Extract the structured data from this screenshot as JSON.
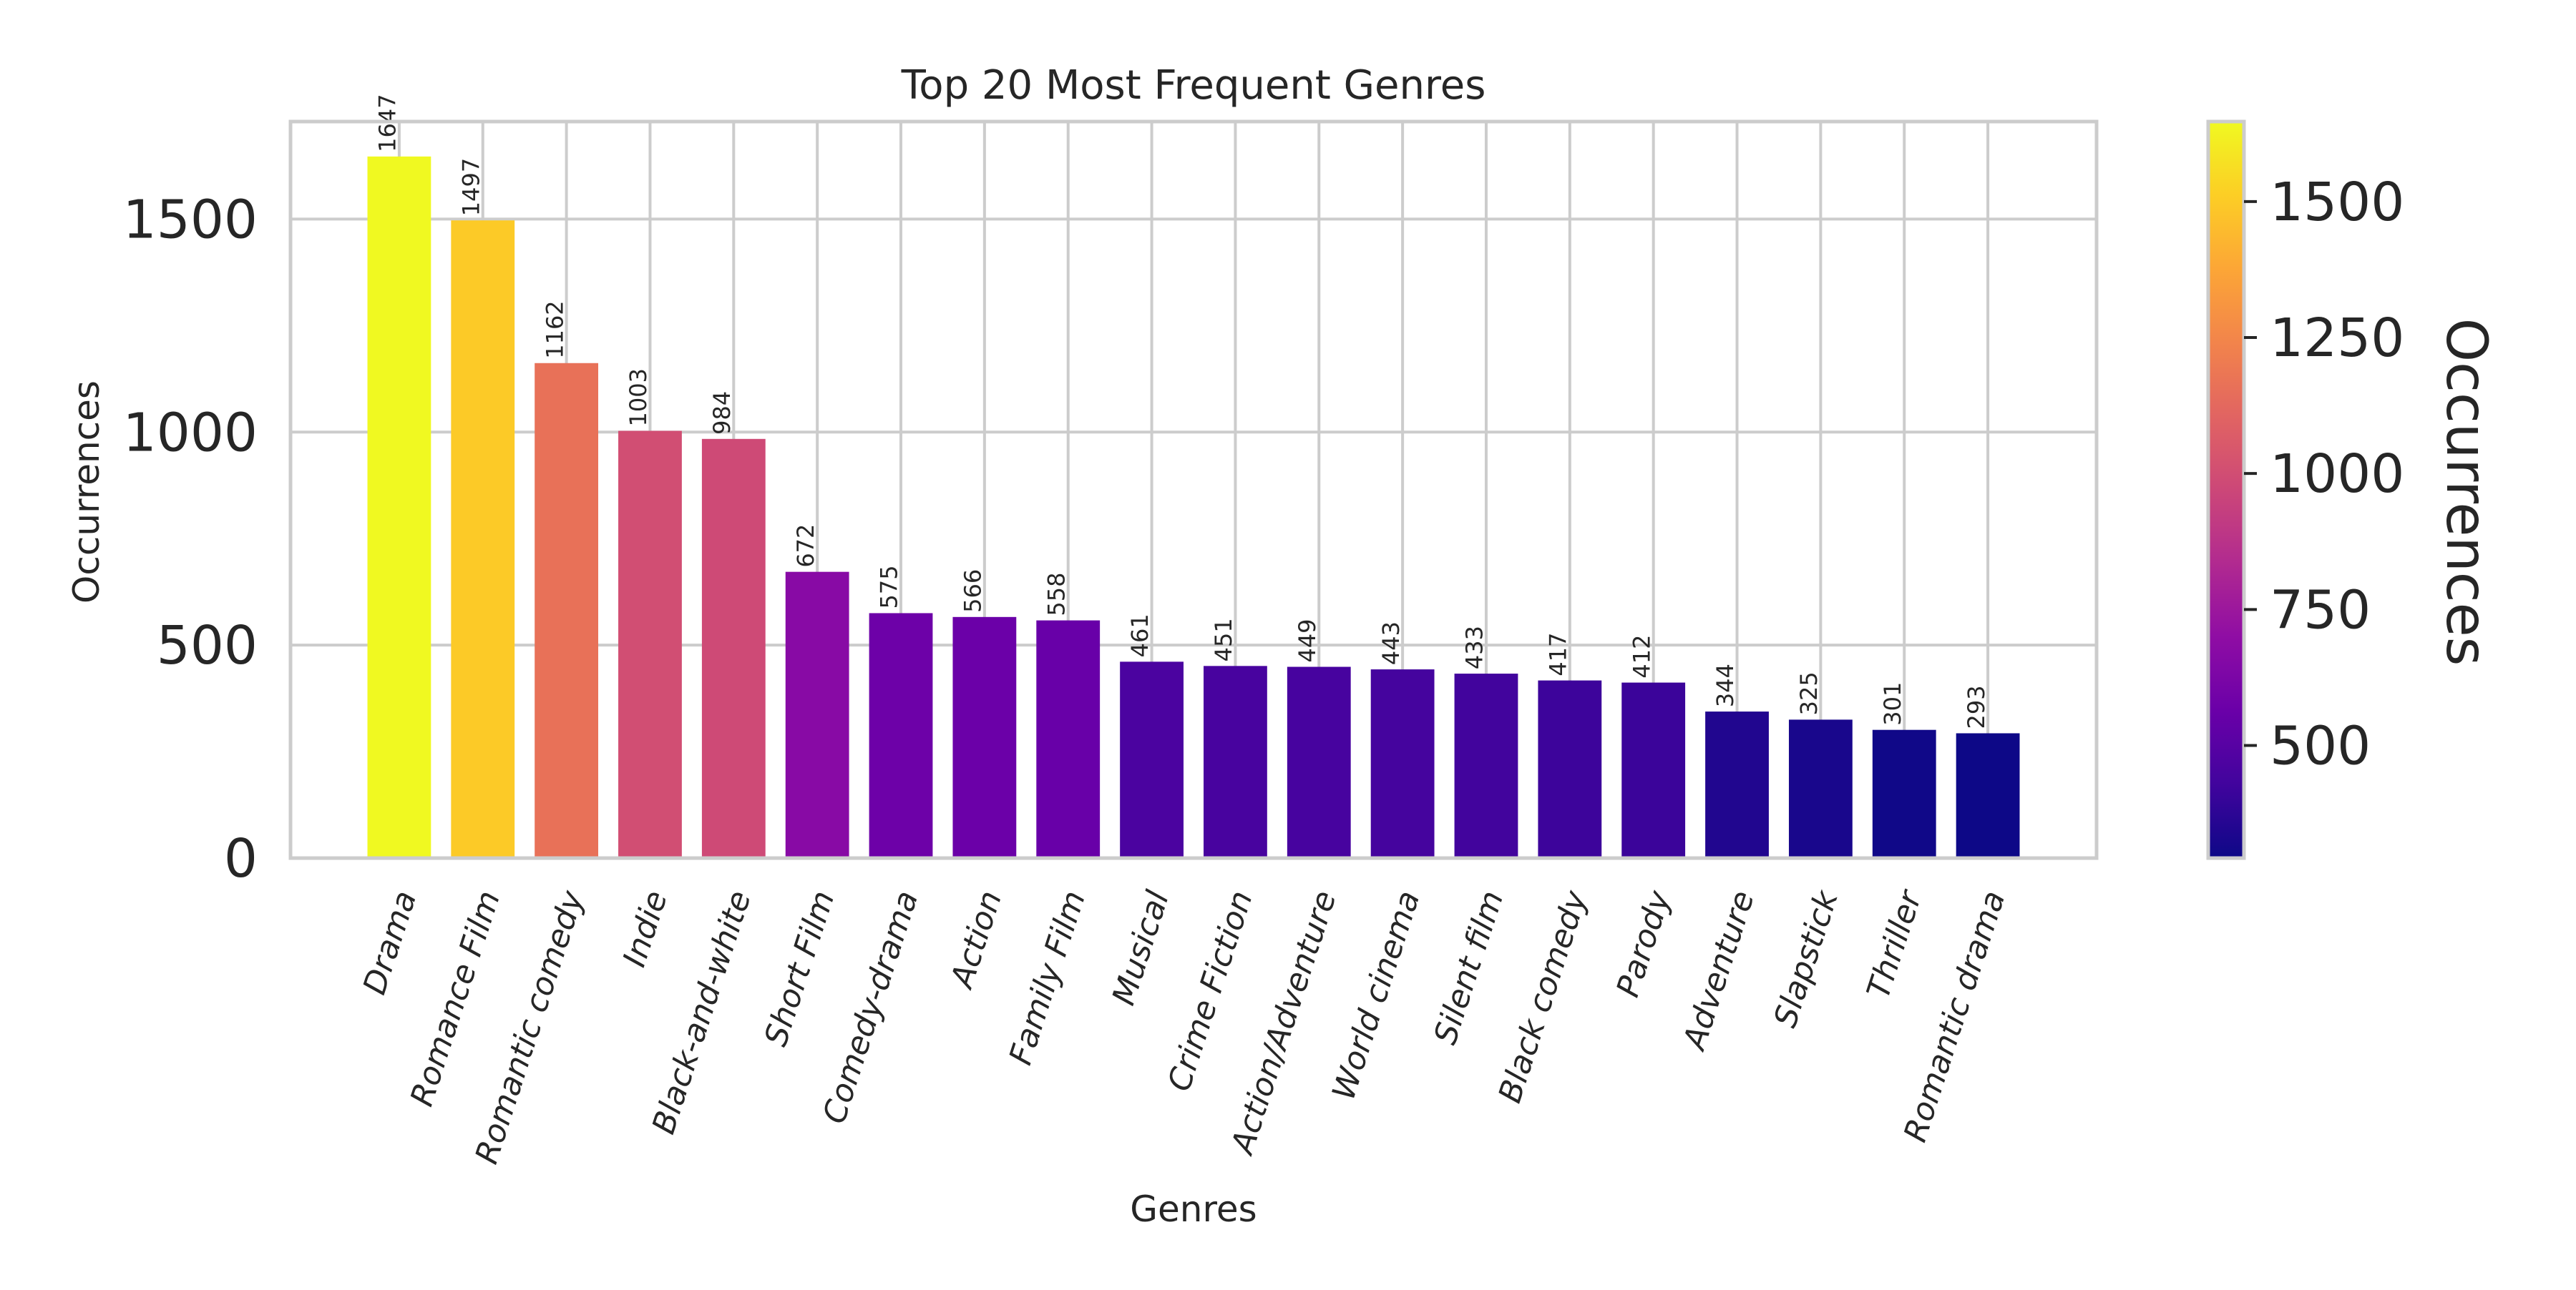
{
  "chart_data": {
    "type": "bar",
    "title": "Top 20 Most Frequent Genres",
    "xlabel": "Genres",
    "ylabel": "Occurrences",
    "categories": [
      "Drama",
      "Romance Film",
      "Romantic comedy",
      "Indie",
      "Black-and-white",
      "Short Film",
      "Comedy-drama",
      "Action",
      "Family Film",
      "Musical",
      "Crime Fiction",
      "Action/Adventure",
      "World cinema",
      "Silent film",
      "Black comedy",
      "Parody",
      "Adventure",
      "Slapstick",
      "Thriller",
      "Romantic drama"
    ],
    "values": [
      1647,
      1497,
      1162,
      1003,
      984,
      672,
      575,
      566,
      558,
      461,
      451,
      449,
      443,
      433,
      417,
      412,
      344,
      325,
      301,
      293
    ],
    "ylim": [
      0,
      1729
    ],
    "yticks": [
      0,
      500,
      1000,
      1500
    ],
    "grid": true,
    "colormap": "plasma",
    "colorbar": {
      "label": "Occurrences",
      "range": [
        293,
        1647
      ],
      "ticks": [
        500,
        750,
        1000,
        1250,
        1500
      ]
    }
  }
}
